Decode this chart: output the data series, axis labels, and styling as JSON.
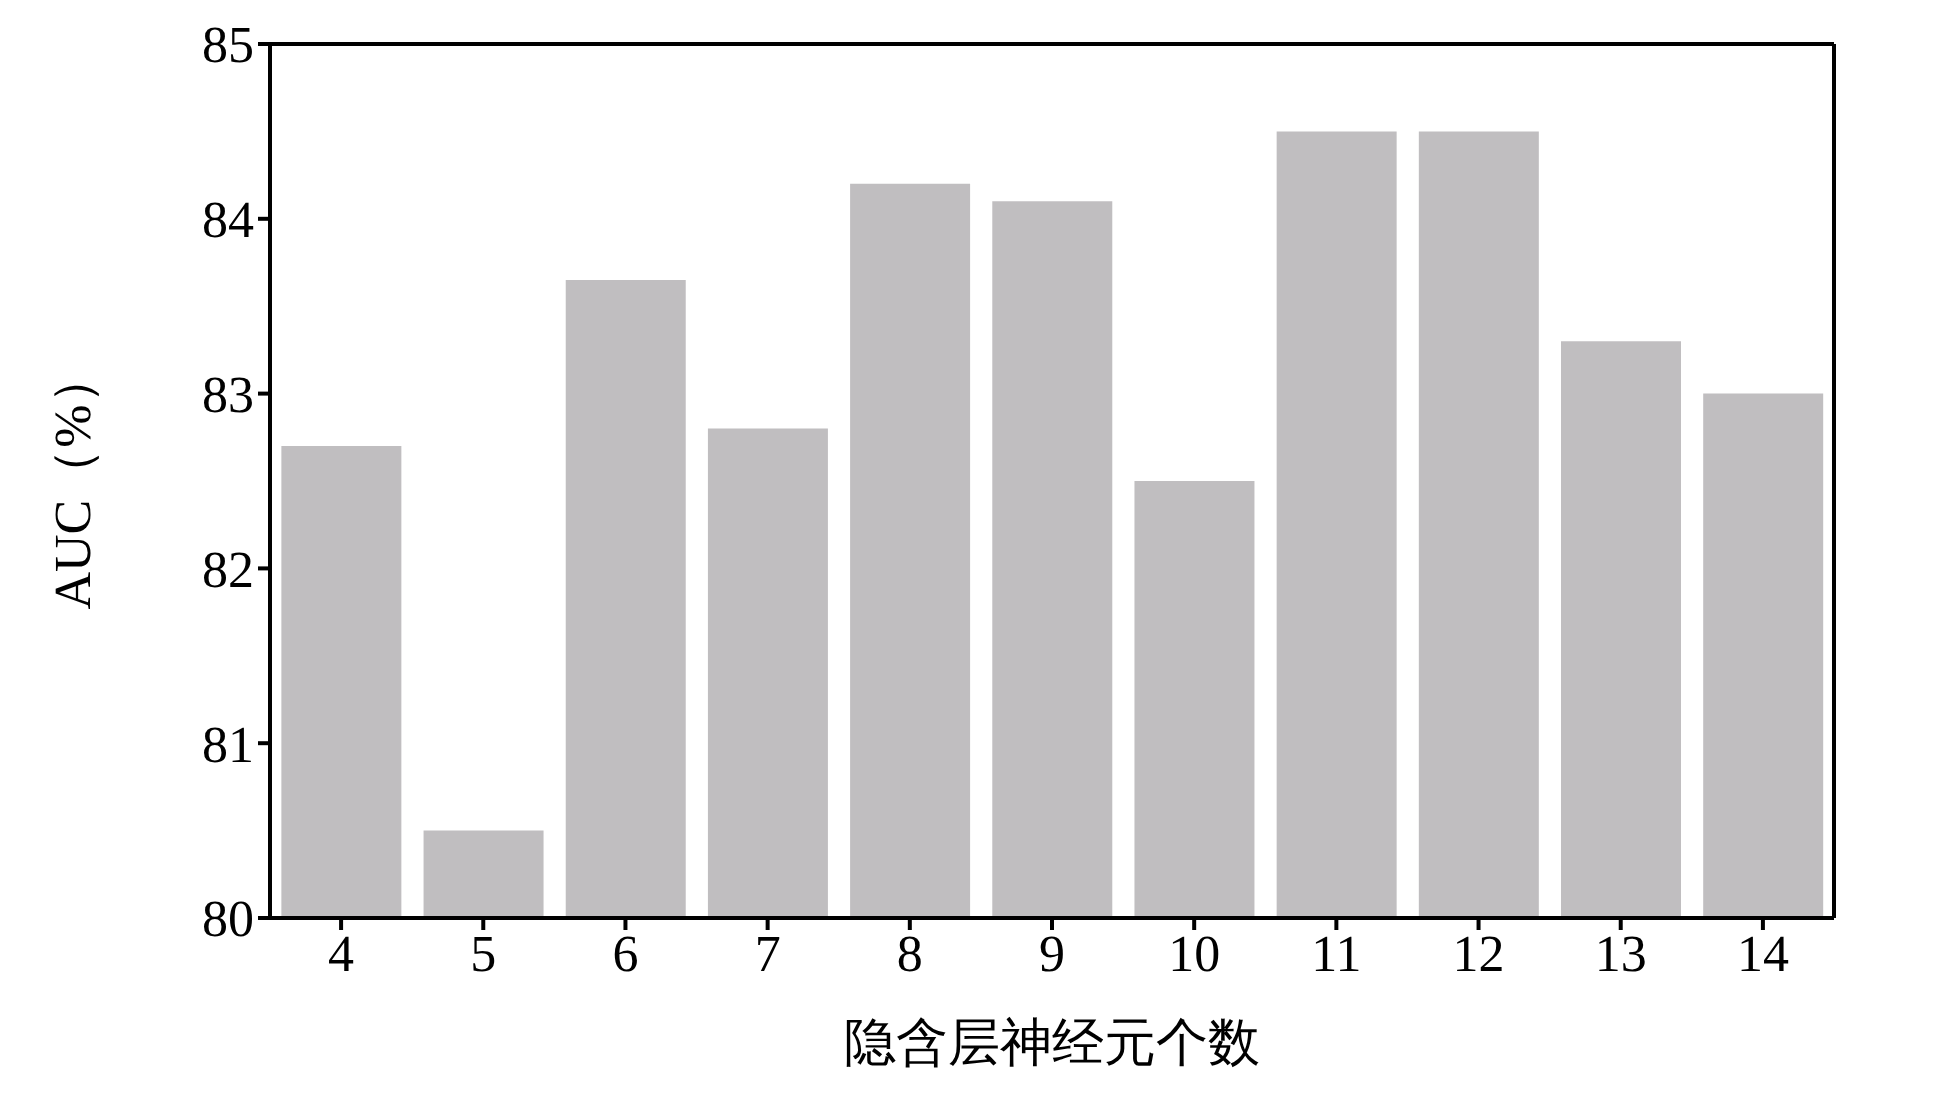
{
  "chart_data": {
    "type": "bar",
    "xlabel": "隐含层神经元个数",
    "ylabel": "AUC（%）",
    "categories": [
      "4",
      "5",
      "6",
      "7",
      "8",
      "9",
      "10",
      "11",
      "12",
      "13",
      "14"
    ],
    "values": [
      82.7,
      80.5,
      83.65,
      82.8,
      84.2,
      84.1,
      82.5,
      84.5,
      84.5,
      83.3,
      83.0
    ],
    "color": "#c0bec0",
    "ylim": [
      80,
      85
    ],
    "yticks": [
      80,
      81,
      82,
      83,
      84,
      85
    ],
    "grid": false
  }
}
